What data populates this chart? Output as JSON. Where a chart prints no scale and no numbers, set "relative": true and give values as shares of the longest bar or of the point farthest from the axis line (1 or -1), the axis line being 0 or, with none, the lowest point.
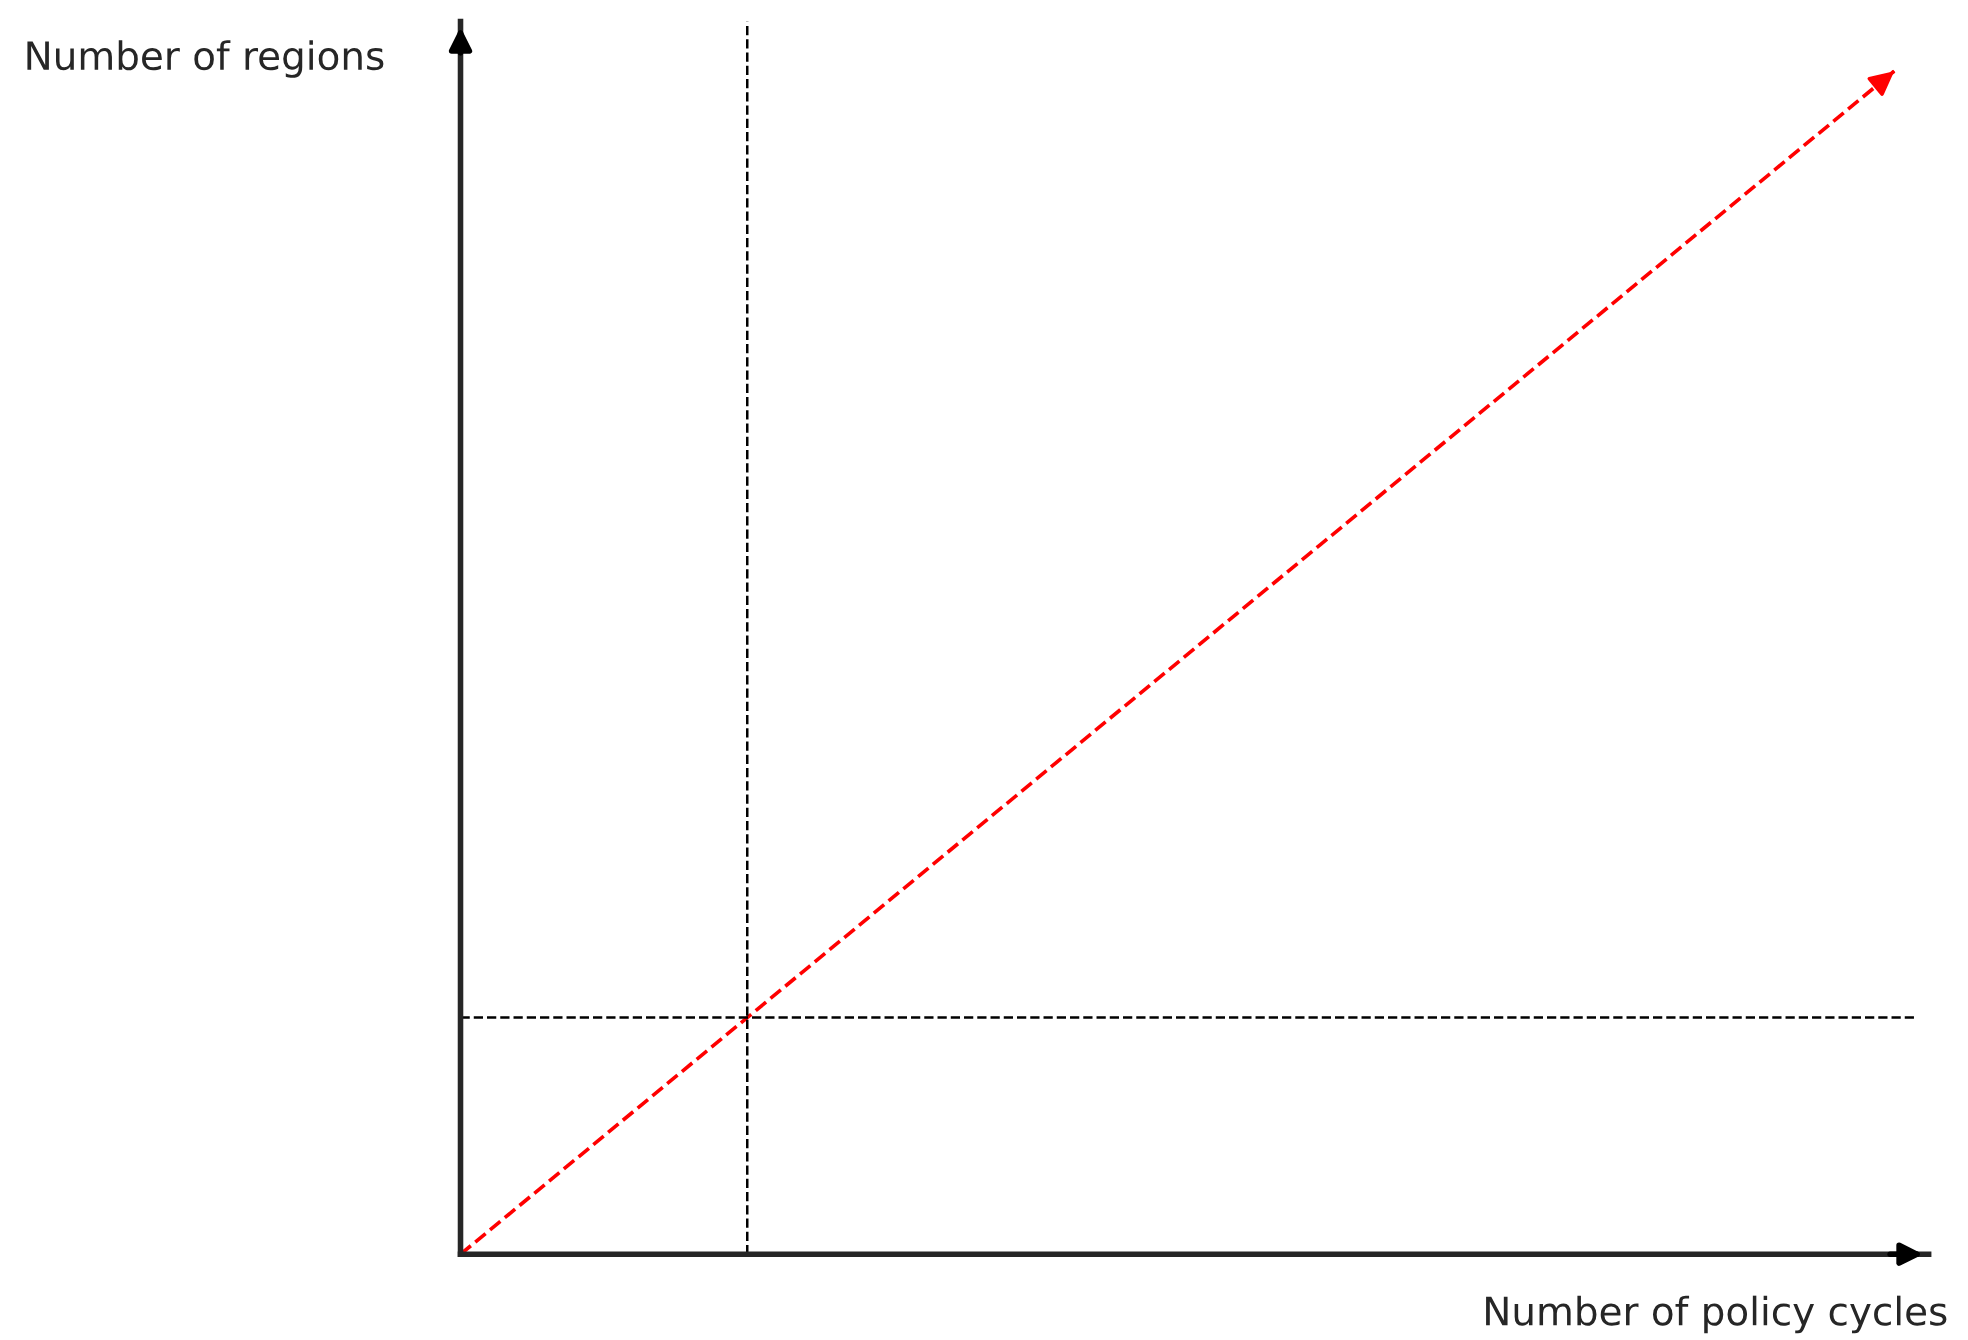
{
  "chart_data": {
    "type": "line",
    "relative": true,
    "xlabel": "Number of policy cycles",
    "ylabel": "Number of regions",
    "categories": [
      null,
      null,
      null,
      null,
      null,
      null
    ],
    "series": [
      {
        "color": "#ff0000",
        "values": [
          0,
          0.2,
          0.4,
          0.6,
          0.8,
          1
        ],
        "line_style": "dashed"
      }
    ],
    "ref_lines": [
      {
        "axis": "y",
        "value": 0.2,
        "color": "#000000",
        "line_style": "dashed"
      }
    ]
  }
}
